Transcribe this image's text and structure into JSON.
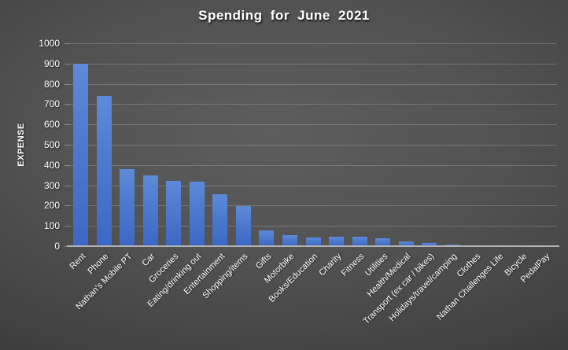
{
  "title": "Spending for June 2021",
  "y_axis_title": "EXPENSE",
  "colors": {
    "background_center": "#5d5d5d",
    "background_edge": "#222222",
    "bar_top": "#5d8ad8",
    "bar_bottom": "#3b68c5",
    "gridline": "rgba(255,255,255,0.20)",
    "axis_line": "#b5b5b5",
    "text": "#ffffff"
  },
  "chart_data": {
    "type": "bar",
    "title": "Spending for June 2021",
    "xlabel": "",
    "ylabel": "EXPENSE",
    "ylim": [
      0,
      1000
    ],
    "yticks": [
      0,
      100,
      200,
      300,
      400,
      500,
      600,
      700,
      800,
      900,
      1000
    ],
    "grid": true,
    "legend": "none",
    "categories": [
      "Rent",
      "Phone",
      "Nathan's Mobile PT",
      "Car",
      "Groceries",
      "Eating/drinking out",
      "Entertainment",
      "Shopping/items",
      "Gifts",
      "Motorbike",
      "Books/Education",
      "Charity",
      "Fitness",
      "Utilities",
      "Health/Medical",
      "Transport (ex car / bikes)",
      "Holidays/travel/camping",
      "Clothes",
      "Nathan Challenges Life",
      "Bicycle",
      "PedalPay"
    ],
    "values": [
      900,
      740,
      380,
      350,
      322,
      318,
      255,
      198,
      76,
      56,
      44,
      47,
      48,
      37,
      24,
      17,
      6,
      0,
      0,
      0,
      0
    ]
  }
}
